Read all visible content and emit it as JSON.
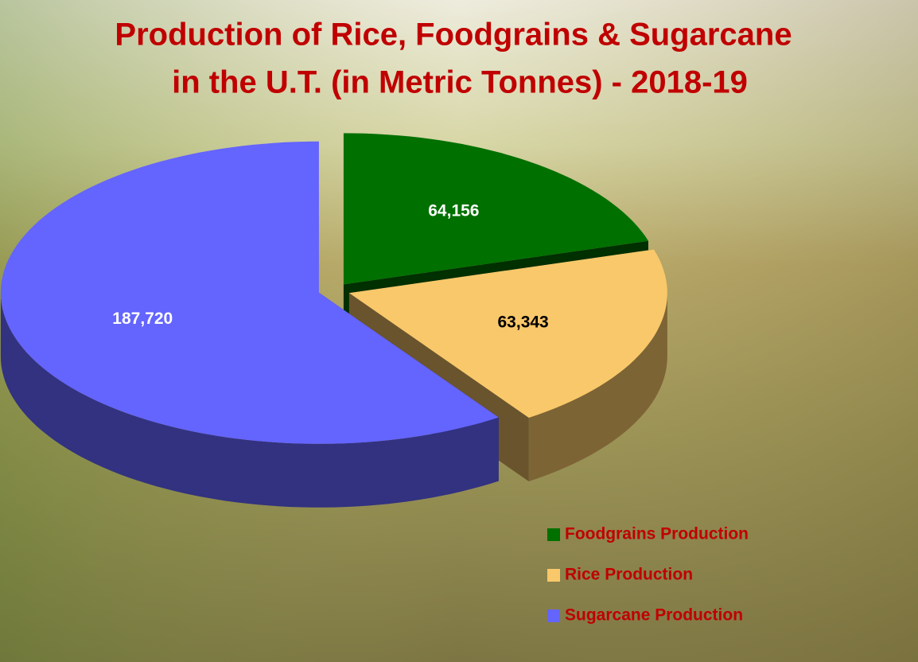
{
  "chart_data": {
    "type": "pie3d",
    "title": [
      "Production of Rice, Foodgrains & Sugarcane",
      "in the U.T. (in Metric Tonnes) - 2018-19"
    ],
    "categories": [
      "Foodgrains Production",
      "Rice Production",
      "Sugarcane Production"
    ],
    "values": [
      64156,
      63343,
      187720
    ],
    "value_labels": [
      "64,156",
      "63,343",
      "187,720"
    ],
    "colors": [
      "#007000",
      "#f9c86a",
      "#6464ff"
    ],
    "label_colors": [
      "#ffffff",
      "#000000",
      "#ffffff"
    ],
    "legend": "lower right"
  }
}
